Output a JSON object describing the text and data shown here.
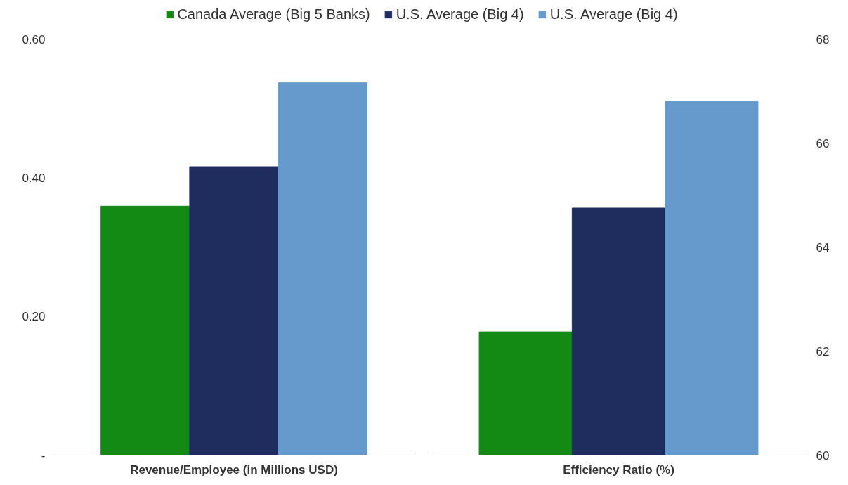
{
  "chart_data": [
    {
      "type": "bar",
      "categories": [
        "Revenue/Employee (in Millions USD)"
      ],
      "series": [
        {
          "name": "Canada Average (Big 5 Banks)",
          "color": "#138a13",
          "values": [
            0.359
          ]
        },
        {
          "name": "U.S. Average (Big 4)",
          "color": "#1f2d5e",
          "values": [
            0.416
          ]
        },
        {
          "name": "U.S. Average (Big 4)",
          "color": "#6699cc",
          "values": [
            0.537
          ]
        }
      ],
      "ylim": [
        0,
        0.6
      ],
      "yticks": [
        {
          "value": 0,
          "label": "-"
        },
        {
          "value": 0.2,
          "label": "0.20"
        },
        {
          "value": 0.4,
          "label": "0.40"
        },
        {
          "value": 0.6,
          "label": "0.60"
        }
      ],
      "legend": "top"
    },
    {
      "type": "bar",
      "categories": [
        "Efficiency Ratio (%)"
      ],
      "series": [
        {
          "color": "#138a13",
          "values": [
            62.37
          ]
        },
        {
          "color": "#1f2d5e",
          "values": [
            64.75
          ]
        },
        {
          "color": "#6699cc",
          "values": [
            66.8
          ]
        }
      ],
      "ylim": [
        60,
        68
      ],
      "yticks": [
        60,
        62,
        64,
        66,
        68
      ]
    }
  ]
}
